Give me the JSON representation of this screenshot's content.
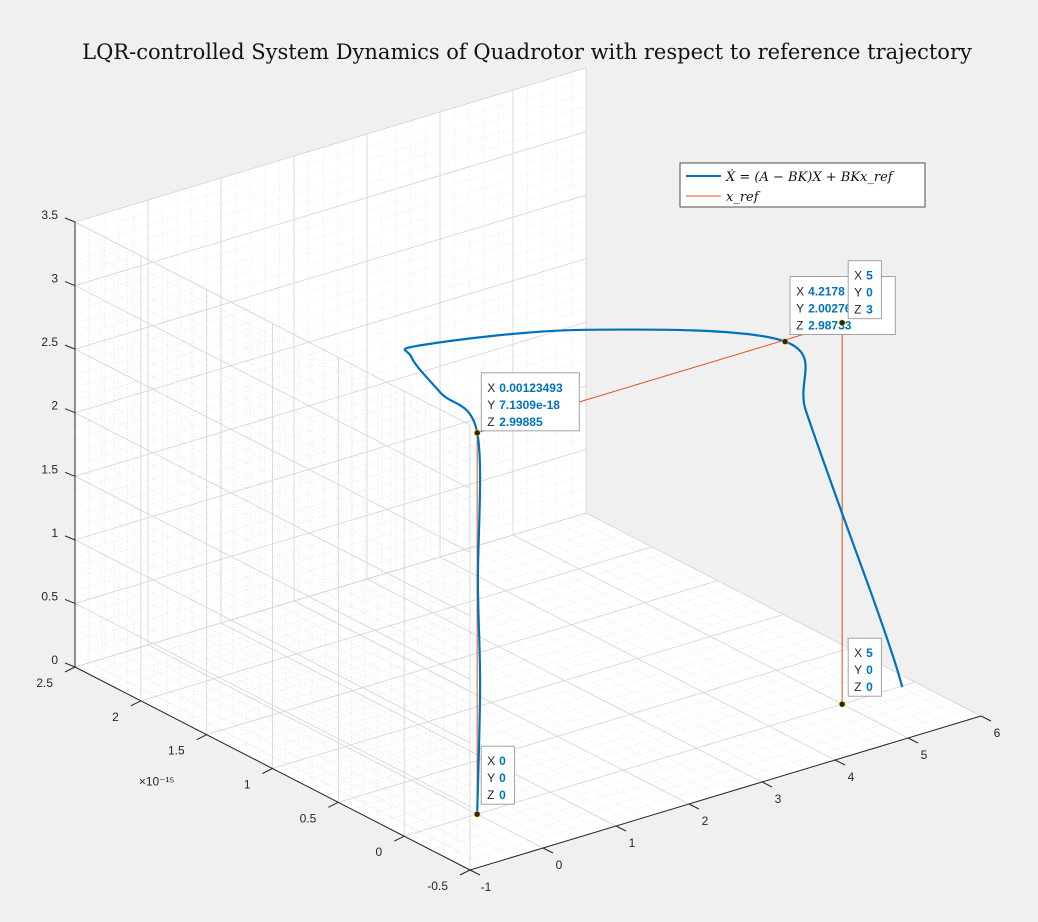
{
  "chart_data": {
    "type": "line",
    "title": "LQR-controlled System Dynamics of Quadrotor with respect to reference trajectory",
    "x_axis": {
      "lim": [
        -1,
        6
      ],
      "ticks": [
        "-1",
        "0",
        "1",
        "2",
        "3",
        "4",
        "5",
        "6"
      ]
    },
    "y_axis": {
      "lim": [
        -0.5,
        2.5
      ],
      "ticks": [
        "-0.5",
        "0",
        "0.5",
        "1",
        "1.5",
        "2",
        "2.5"
      ],
      "exponent_label": "×10⁻¹⁵"
    },
    "z_axis": {
      "lim": [
        0,
        3.5
      ],
      "ticks": [
        "0",
        "0.5",
        "1",
        "1.5",
        "2",
        "2.5",
        "3",
        "3.5"
      ]
    },
    "grid": "on, with minor grid",
    "legend_location": "top-right",
    "series": [
      {
        "name": "Ẋ = (A − BK)X + BKx_ref",
        "color": "#0072bd",
        "points": [
          [
            0,
            0,
            0
          ],
          [
            0.04,
            0,
            1.0
          ],
          [
            0.01,
            0,
            1.8
          ],
          [
            0.001235,
            0,
            2.99885
          ],
          [
            -0.5,
            0,
            3.4
          ],
          [
            -0.9,
            0,
            3.75
          ],
          [
            -0.75,
            0,
            3.82
          ],
          [
            1.5,
            0,
            3.55
          ],
          [
            4.2178,
            0,
            2.98733
          ],
          [
            4.5,
            0,
            2.4
          ],
          [
            5.0,
            0,
            1.5
          ],
          [
            5.4,
            0,
            0.8
          ],
          [
            5.7,
            0,
            0.25
          ],
          [
            5.82,
            0,
            0
          ]
        ]
      },
      {
        "name": "x_ref",
        "color": "#d95319",
        "points": [
          [
            0,
            0,
            0
          ],
          [
            0,
            0,
            3
          ],
          [
            5,
            0,
            3
          ],
          [
            5,
            0,
            0
          ]
        ]
      }
    ],
    "datatips": [
      {
        "X": "4.2178",
        "Y": "2.00276e-15",
        "Z": "2.98733",
        "at": [
          4.2178,
          0,
          2.98733
        ]
      },
      {
        "X": "0.00123493",
        "Y": "7.1309e-18",
        "Z": "2.99885",
        "at": [
          0.001235,
          0,
          2.99885
        ]
      },
      {
        "X": "5",
        "Y": "0",
        "Z": "3",
        "at": [
          5,
          0,
          3
        ]
      },
      {
        "X": "5",
        "Y": "0",
        "Z": "0",
        "at": [
          5,
          0,
          0
        ]
      },
      {
        "X": "0",
        "Y": "0",
        "Z": "0",
        "at": [
          0,
          0,
          0
        ]
      }
    ]
  }
}
